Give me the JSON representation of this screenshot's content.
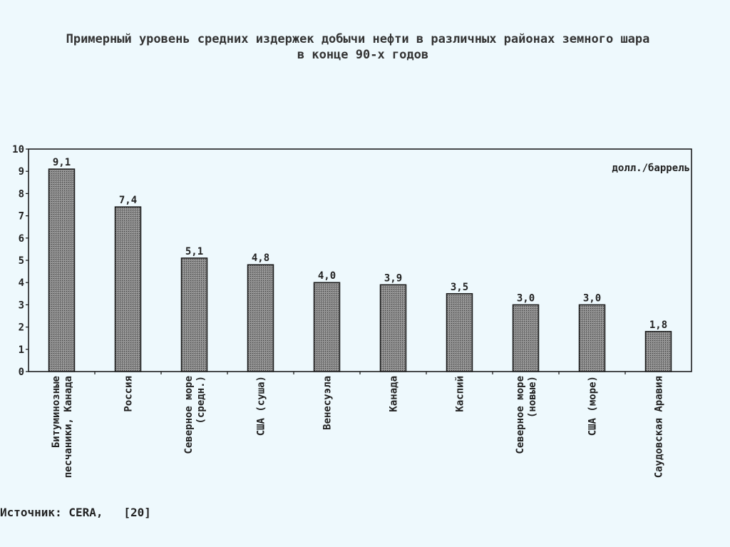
{
  "title_line1": "Примерный уровень средних издержек добычи нефти в различных районах земного шара",
  "title_line2": "в конце 90-х годов",
  "source": "Источник: CERA,   [20]",
  "chart_data": {
    "type": "bar",
    "unit_label": "долл./баррель",
    "ylim": [
      0,
      10
    ],
    "yticks": [
      "0",
      "1",
      "2",
      "3",
      "4",
      "5",
      "6",
      "7",
      "8",
      "9",
      "10"
    ],
    "categories": [
      [
        "Битуминозные",
        "песчаники, Канада"
      ],
      [
        "Россия"
      ],
      [
        "Северное море",
        "(средн.)"
      ],
      [
        "США (суша)"
      ],
      [
        "Венесуэла"
      ],
      [
        "Канада"
      ],
      [
        "Каспий"
      ],
      [
        "Северное море",
        "(новые)"
      ],
      [
        "США (море)"
      ],
      [
        "Саудовская Аравия"
      ]
    ],
    "values": [
      9.1,
      7.4,
      5.1,
      4.8,
      4.0,
      3.9,
      3.5,
      3.0,
      3.0,
      1.8
    ],
    "data_labels": [
      "9,1",
      "7,4",
      "5,1",
      "4,8",
      "4,0",
      "3,9",
      "3,5",
      "3,0",
      "3,0",
      "1,8"
    ],
    "grid": false,
    "legend": "none",
    "colors": {
      "bar_fill": "#6b6b6b",
      "bar_stroke": "#1a1a1a",
      "axis": "#111111"
    }
  }
}
